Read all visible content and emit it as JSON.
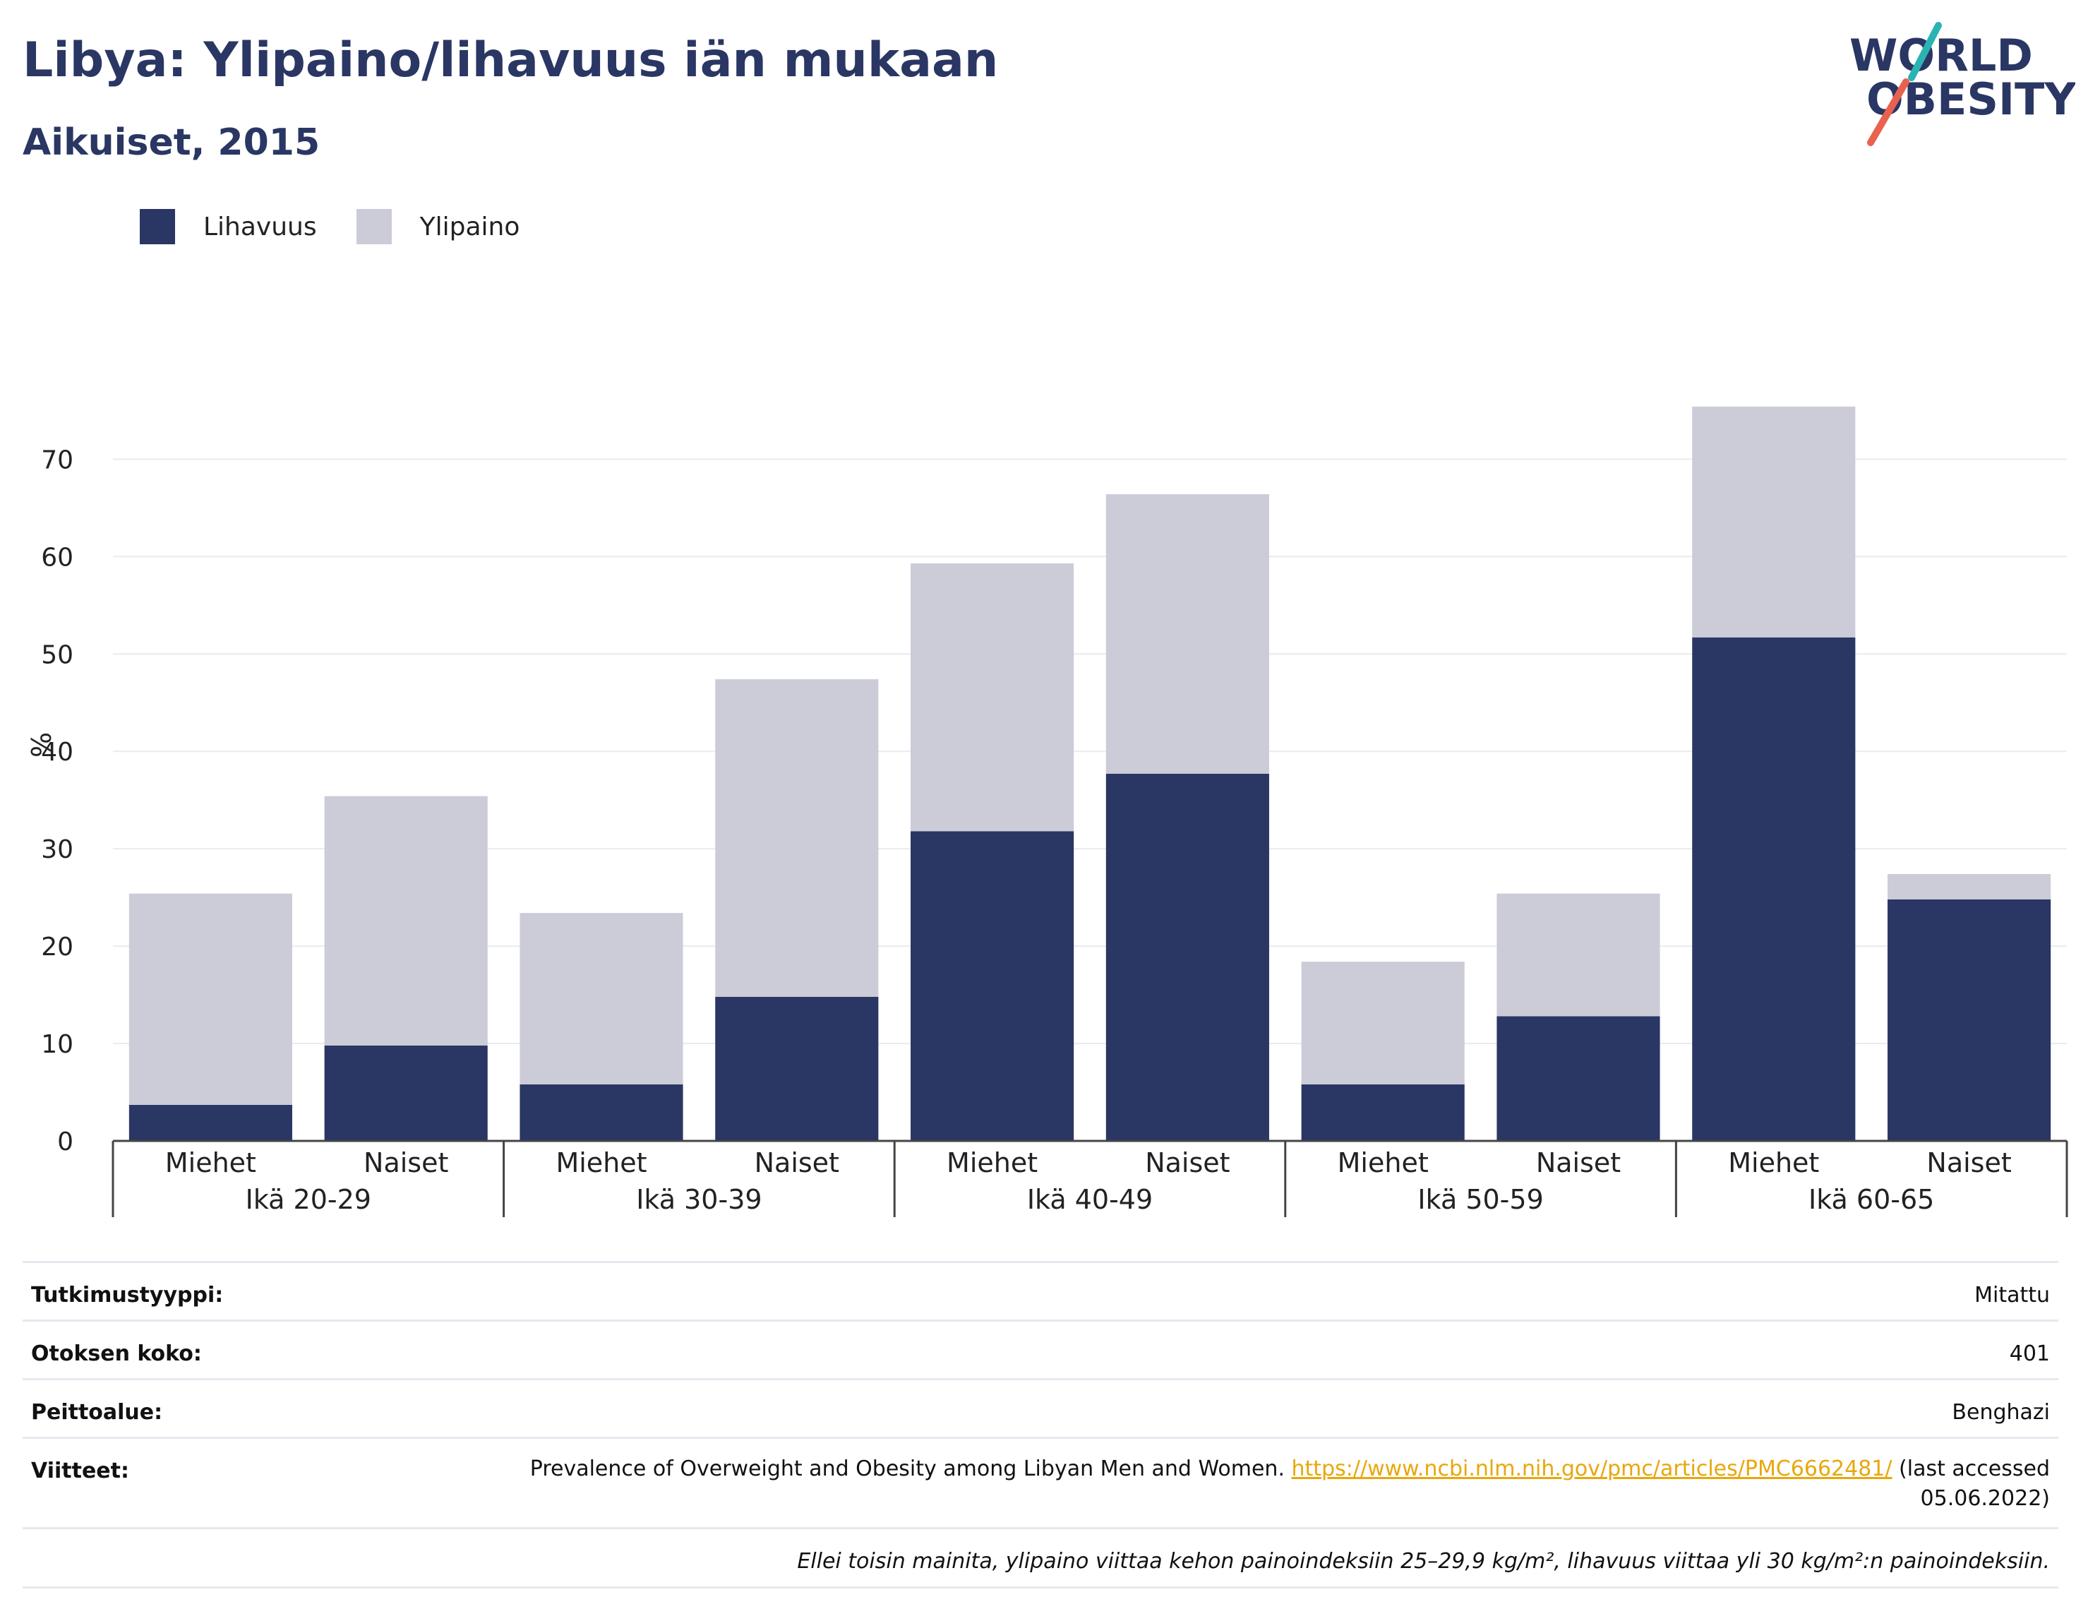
{
  "title": "Libya: Ylipaino/lihavuus iän mukaan",
  "subtitle": "Aikuiset, 2015",
  "logo": {
    "line1": "WORLD",
    "line2": "OBESITY"
  },
  "legend": [
    {
      "label": "Lihavuus",
      "color": "#2a3663"
    },
    {
      "label": "Ylipaino",
      "color": "#cbccd8"
    }
  ],
  "colors": {
    "obesity": "#2a3663",
    "overweight": "#cbccd8",
    "accent_teal": "#2ab3b3",
    "accent_red": "#e8624f"
  },
  "chart_data": {
    "type": "bar",
    "stacked": true,
    "ylabel": "%",
    "ylim": [
      0,
      78
    ],
    "yticks": [
      0,
      10,
      20,
      30,
      40,
      50,
      60,
      70
    ],
    "grid": true,
    "legend_position": "top-left",
    "groups": [
      "Ikä 20-29",
      "Ikä 30-39",
      "Ikä 40-49",
      "Ikä 50-59",
      "Ikä 60-65"
    ],
    "categories": [
      "Miehet",
      "Naiset",
      "Miehet",
      "Naiset",
      "Miehet",
      "Naiset",
      "Miehet",
      "Naiset",
      "Miehet",
      "Naiset"
    ],
    "series": [
      {
        "name": "Lihavuus",
        "values": [
          3.7,
          9.8,
          5.8,
          14.8,
          31.8,
          37.7,
          5.8,
          12.8,
          51.7,
          24.8
        ]
      },
      {
        "name": "Ylipaino",
        "values": [
          21.7,
          25.6,
          17.6,
          32.6,
          27.5,
          28.7,
          12.6,
          12.6,
          23.7,
          2.6
        ]
      }
    ]
  },
  "meta": {
    "study_type_label": "Tutkimustyyppi:",
    "study_type_value": "Mitattu",
    "sample_label": "Otoksen koko:",
    "sample_value": "401",
    "coverage_label": "Peittoalue:",
    "coverage_value": "Benghazi",
    "refs_label": "Viitteet:",
    "refs_text": "Prevalence of Overweight and Obesity among Libyan Men and Women.",
    "refs_link": "https://www.ncbi.nlm.nih.gov/pmc/articles/PMC6662481/",
    "refs_tail": "(last accessed 05.06.2022)",
    "note": "Ellei toisin mainita, ylipaino viittaa kehon painoindeksiin 25–29,9 kg/m², lihavuus viittaa yli 30 kg/m²:n painoindeksiin."
  }
}
